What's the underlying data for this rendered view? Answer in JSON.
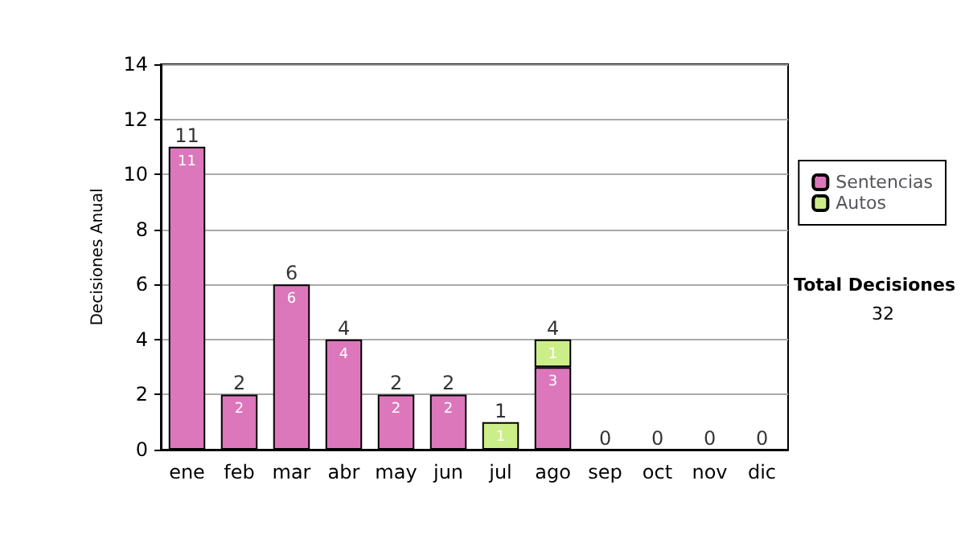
{
  "chart_data": {
    "type": "bar",
    "stacked": true,
    "ylabel": "Decisiones Anual",
    "categories": [
      "ene",
      "feb",
      "mar",
      "abr",
      "may",
      "jun",
      "jul",
      "ago",
      "sep",
      "oct",
      "nov",
      "dic"
    ],
    "series": [
      {
        "name": "Sentencias",
        "color": "#dd77bb",
        "values": [
          11,
          2,
          6,
          4,
          2,
          2,
          0,
          3,
          0,
          0,
          0,
          0
        ],
        "value_labels": [
          "11",
          "2",
          "6",
          "4",
          "2",
          "2",
          null,
          "3",
          null,
          null,
          null,
          null
        ]
      },
      {
        "name": "Autos",
        "color": "#ccee88",
        "values": [
          0,
          0,
          0,
          0,
          0,
          0,
          1,
          1,
          0,
          0,
          0,
          0
        ],
        "value_labels": [
          null,
          null,
          null,
          null,
          null,
          null,
          "1",
          "1",
          null,
          null,
          null,
          null
        ]
      }
    ],
    "totals": [
      "11",
      "2",
      "6",
      "4",
      "2",
      "2",
      "1",
      "4",
      "0",
      "0",
      "0",
      "0"
    ],
    "ylim": [
      0,
      14
    ],
    "yticks": [
      0,
      2,
      4,
      6,
      8,
      10,
      12,
      14
    ],
    "grid": "y",
    "legend": "right",
    "annotations": [
      "Total Decisiones",
      "32"
    ]
  }
}
